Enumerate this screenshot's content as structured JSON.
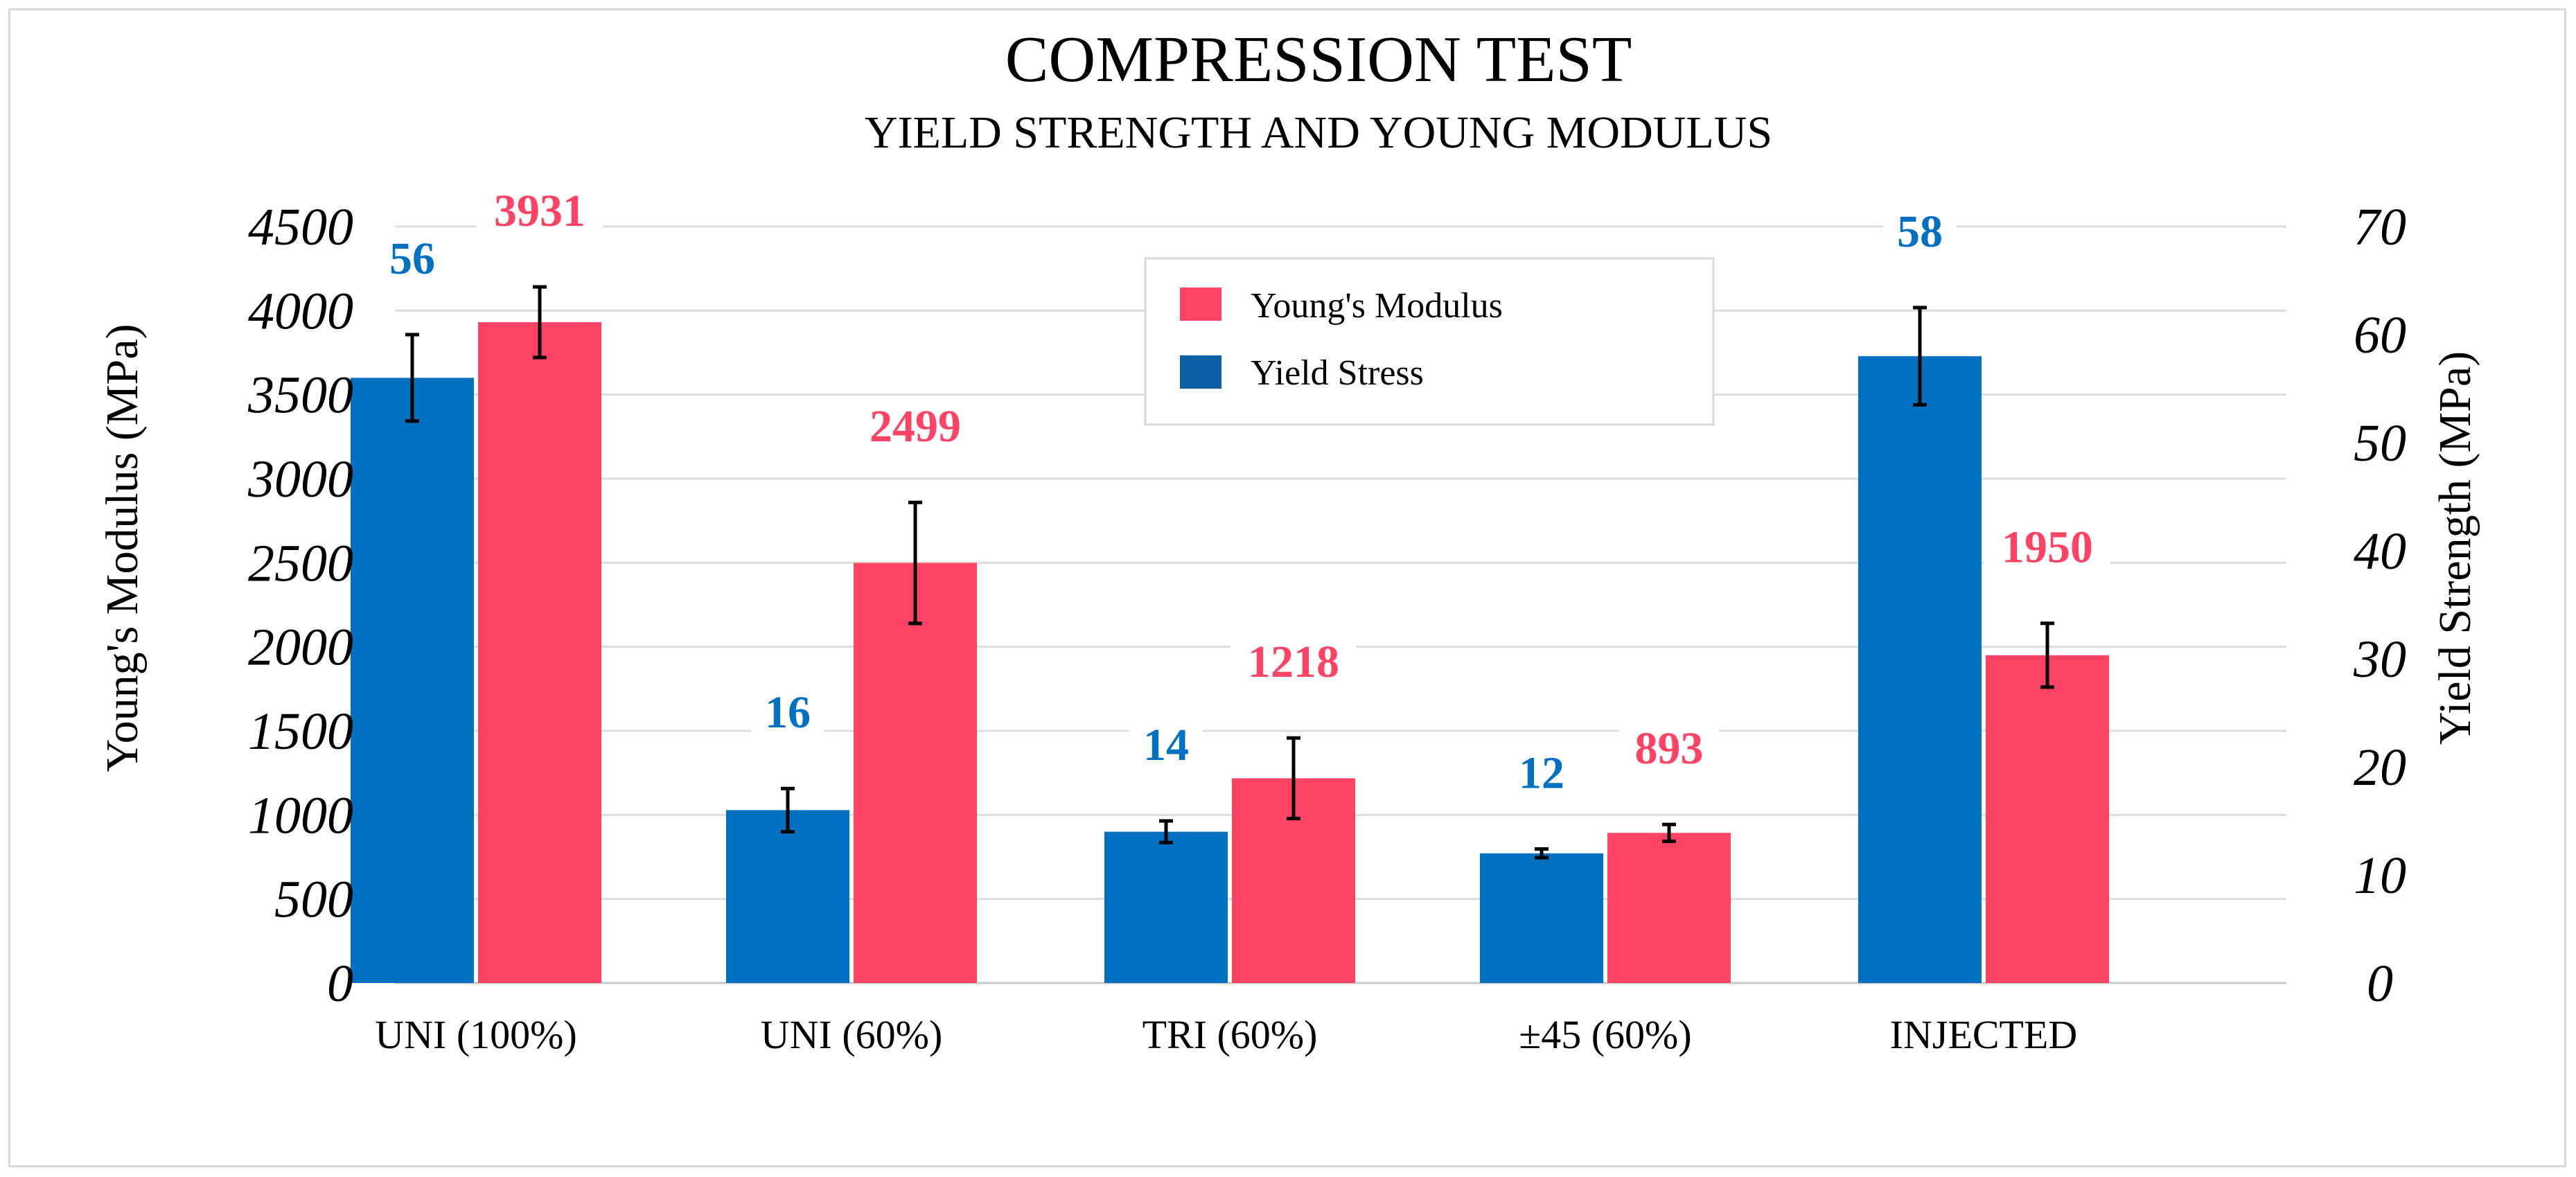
{
  "chart_data": {
    "type": "bar",
    "title": "COMPRESSION TEST",
    "subtitle": "YIELD STRENGTH AND YOUNG MODULUS",
    "categories": [
      "UNI (100%)",
      "UNI (60%)",
      "TRI (60%)",
      "±45 (60%)",
      "INJECTED"
    ],
    "ylabel_left": "Young's Modulus (MPa)",
    "ylabel_right": "Yield Strength (MPa)",
    "ylim_left": [
      0,
      4500
    ],
    "yticks_left": [
      "0",
      "500",
      "1000",
      "1500",
      "2000",
      "2500",
      "3000",
      "3500",
      "4000",
      "4500"
    ],
    "ylim_right": [
      0,
      70
    ],
    "yticks_right": [
      "0",
      "10",
      "20",
      "30",
      "40",
      "50",
      "60",
      "70"
    ],
    "grid": true,
    "legend_position": "top-center",
    "series": [
      {
        "name": "Yield Stress",
        "axis": "right",
        "color": "#0070C0",
        "legend_color": "#0B5FA5",
        "values": [
          56,
          16,
          14,
          12,
          58
        ],
        "data_labels": [
          "56",
          "16",
          "14",
          "12",
          "58"
        ],
        "errors": [
          4,
          2,
          1,
          0.4,
          4.5
        ]
      },
      {
        "name": "Young's Modulus",
        "axis": "left",
        "color": "#FF4365",
        "values": [
          3931,
          2499,
          1218,
          893,
          1950
        ],
        "data_labels": [
          "3931",
          "2499",
          "1218",
          "893",
          "1950"
        ],
        "errors": [
          210,
          360,
          240,
          50,
          190
        ]
      }
    ]
  }
}
